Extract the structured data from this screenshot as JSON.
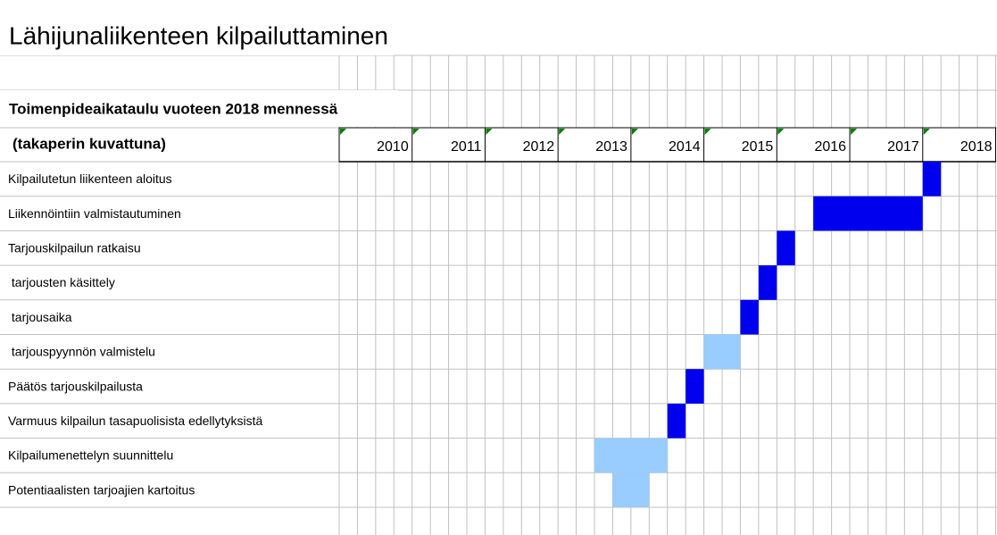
{
  "chart_data": {
    "type": "gantt",
    "title": "Lähijunaliikenteen kilpailuttaminen",
    "subtitle": "Toimenpideaikataulu vuoteen 2018 mennessä",
    "subtitle2": "(takaperin kuvattuna)",
    "xlim": [
      2010,
      2019
    ],
    "xticks": [
      2010,
      2011,
      2012,
      2013,
      2014,
      2015,
      2016,
      2017,
      2018
    ],
    "tasks": [
      {
        "name": "Kilpailutetun liikenteen aloitus",
        "start": 2018,
        "end": 2018.25,
        "color": "#0000ee"
      },
      {
        "name": "Liikennöintiin valmistautuminen",
        "start": 2016.5,
        "end": 2018,
        "color": "#0000ee"
      },
      {
        "name": "Tarjouskilpailun ratkaisu",
        "start": 2016,
        "end": 2016.25,
        "color": "#0000ee"
      },
      {
        "name": " tarjousten käsittely",
        "start": 2015.75,
        "end": 2016,
        "color": "#0000ee"
      },
      {
        "name": " tarjousaika",
        "start": 2015.5,
        "end": 2015.75,
        "color": "#0000ee"
      },
      {
        "name": " tarjouspyynnön valmistelu",
        "start": 2015,
        "end": 2015.5,
        "color": "#99ccff"
      },
      {
        "name": "Päätös tarjouskilpailusta",
        "start": 2014.75,
        "end": 2015,
        "color": "#0000ee"
      },
      {
        "name": "Varmuus kilpailun tasapuolisista edellytyksistä",
        "start": 2014.5,
        "end": 2014.75,
        "color": "#0000ee"
      },
      {
        "name": "Kilpailumenettelyn suunnittelu",
        "start": 2013.5,
        "end": 2014.5,
        "color": "#99ccff"
      },
      {
        "name": "Potentiaalisten tarjoajien kartoitus",
        "start": 2013.75,
        "end": 2014.25,
        "color": "#99ccff"
      }
    ]
  }
}
